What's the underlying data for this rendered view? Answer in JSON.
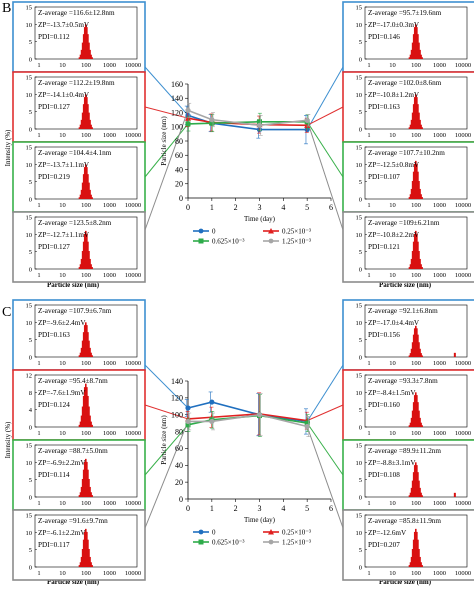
{
  "colors": {
    "series_0": "#1f6fbf",
    "series_025": "#e02020",
    "series_0625": "#2eab4a",
    "series_125": "#a6a6a6",
    "hist": "#d91010",
    "box_blue": "#3d8fd0",
    "box_red": "#e03030",
    "box_green": "#38b04a",
    "box_gray": "#8c8c8c"
  },
  "shared": {
    "x_ticks": [
      "1",
      "10",
      "100",
      "1000",
      "10000"
    ],
    "particle_size_label": "Particle size (nm)",
    "intensity_label": "Intensity (%)",
    "xlabel": "Time (day)",
    "ylabel": "Particle size (nm)",
    "legend": [
      "0",
      "0.25×10⁻³",
      "0.625×10⁻³",
      "1.25×10⁻³"
    ]
  },
  "chart_data": [
    {
      "panel": "B",
      "type": "line",
      "xlabel": "Time (day)",
      "ylabel": "Particle size (nm)",
      "xlim": [
        0,
        6
      ],
      "ylim": [
        0,
        160
      ],
      "x_ticks": [
        0,
        1,
        2,
        3,
        4,
        5,
        6
      ],
      "y_ticks": [
        0,
        20,
        40,
        60,
        80,
        100,
        120,
        140,
        160
      ],
      "x": [
        0,
        1,
        3,
        5
      ],
      "series": [
        {
          "name": "0",
          "color": "#1f6fbf",
          "values": [
            116,
            105,
            96,
            96
          ],
          "err": [
            13,
            12,
            12,
            20
          ]
        },
        {
          "name": "0.25×10⁻³",
          "color": "#e02020",
          "values": [
            112,
            106,
            103,
            102
          ],
          "err": [
            12,
            12,
            12,
            10
          ]
        },
        {
          "name": "0.625×10⁻³",
          "color": "#2eab4a",
          "values": [
            104,
            105,
            107,
            107
          ],
          "err": [
            10,
            12,
            12,
            10
          ]
        },
        {
          "name": "1.25×10⁻³",
          "color": "#a6a6a6",
          "values": [
            123,
            110,
            102,
            109
          ],
          "err": [
            10,
            10,
            14,
            8
          ]
        }
      ],
      "legend_position": "bottom"
    },
    {
      "panel": "C",
      "type": "line",
      "xlabel": "Time (day)",
      "ylabel": "Particle size (nm)",
      "xlim": [
        0,
        6
      ],
      "ylim": [
        0,
        140
      ],
      "x_ticks": [
        0,
        1,
        2,
        3,
        4,
        5,
        6
      ],
      "y_ticks": [
        0,
        20,
        40,
        60,
        80,
        100,
        120,
        140
      ],
      "x": [
        0,
        1,
        3,
        5
      ],
      "series": [
        {
          "name": "0",
          "color": "#1f6fbf",
          "values": [
            108,
            115,
            100,
            92
          ],
          "err": [
            10,
            12,
            25,
            15
          ]
        },
        {
          "name": "0.25×10⁻³",
          "color": "#e02020",
          "values": [
            95,
            97,
            101,
            93
          ],
          "err": [
            9,
            12,
            25,
            10
          ]
        },
        {
          "name": "0.625×10⁻³",
          "color": "#2eab4a",
          "values": [
            88,
            94,
            99,
            90
          ],
          "err": [
            8,
            10,
            25,
            10
          ]
        },
        {
          "name": "1.25×10⁻³",
          "color": "#a6a6a6",
          "values": [
            92,
            92,
            100,
            86
          ],
          "err": [
            10,
            10,
            25,
            12
          ]
        }
      ],
      "legend_position": "bottom"
    }
  ],
  "panels": [
    {
      "letter": "B",
      "boxes": [
        {
          "id": "B-L1",
          "lines": [
            "Z-average =116.6±12.8nm",
            "ZP=-13.7±0.5mV",
            "PDI=0.112"
          ],
          "y_ticks": [
            "15",
            "10",
            "5",
            "0"
          ],
          "ymax": 15,
          "hist_peak": 10,
          "extra_peak": false
        },
        {
          "id": "B-L2",
          "lines": [
            "Z-average =112.2±19.8nm",
            "ZP=-14.1±0.4mV",
            "PDI=0.127"
          ],
          "y_ticks": [
            "15",
            "10",
            "5",
            "0"
          ],
          "ymax": 15,
          "hist_peak": 10,
          "extra_peak": false
        },
        {
          "id": "B-L3",
          "lines": [
            "Z-average =104.4±4.1nm",
            "ZP=-13.7±1.1mV",
            "PDI=0.219"
          ],
          "y_ticks": [
            "15",
            "10",
            "5",
            "0"
          ],
          "ymax": 15,
          "hist_peak": 10,
          "extra_peak": false
        },
        {
          "id": "B-L4",
          "lines": [
            "Z-average =123.5±8.2nm",
            "ZP=-12.7±1.1mV",
            "PDI=0.127"
          ],
          "y_ticks": [
            "15",
            "10",
            "5",
            "0"
          ],
          "ymax": 15,
          "hist_peak": 11,
          "extra_peak": false
        },
        {
          "id": "B-R1",
          "lines": [
            "Z-average =95.7±19.6nm",
            "ZP=-17.0±0.3mV",
            "PDI=0.146"
          ],
          "y_ticks": [
            "15",
            "10",
            "5",
            "0"
          ],
          "ymax": 15,
          "hist_peak": 10,
          "extra_peak": false
        },
        {
          "id": "B-R2",
          "lines": [
            "Z-average =102.0±8.6nm",
            "ZP=-10.8±1.2mV",
            "PDI=0.163"
          ],
          "y_ticks": [
            "15",
            "10",
            "5",
            "0"
          ],
          "ymax": 15,
          "hist_peak": 10,
          "extra_peak": false
        },
        {
          "id": "B-R3",
          "lines": [
            "Z-average =107.7±10.2nm",
            "ZP=-12.5±0.8mV",
            "PDI=0.107"
          ],
          "y_ticks": [
            "15",
            "10",
            "5",
            "0"
          ],
          "ymax": 15,
          "hist_peak": 11,
          "extra_peak": false
        },
        {
          "id": "B-R4",
          "lines": [
            "Z-average =109±6.21nm",
            "ZP=-10.8±2.2mV",
            "PDI=0.121"
          ],
          "y_ticks": [
            "15",
            "10",
            "5",
            "0"
          ],
          "ymax": 15,
          "hist_peak": 11,
          "extra_peak": false
        }
      ]
    },
    {
      "letter": "C",
      "boxes": [
        {
          "id": "C-L1",
          "lines": [
            "Z-average =107.9±6.7nm",
            "ZP=-9.6±2.4mV",
            "PDI=0.163"
          ],
          "y_ticks": [
            "15",
            "10",
            "5",
            "0"
          ],
          "ymax": 15,
          "hist_peak": 10,
          "extra_peak": false
        },
        {
          "id": "C-L2",
          "lines": [
            "Z-average =95.4±8.7nm",
            "ZP=-7.6±1.9mV",
            "PDI=0.124"
          ],
          "y_ticks": [
            "12",
            "8",
            "4",
            "0"
          ],
          "ymax": 12,
          "hist_peak": 10,
          "extra_peak": false
        },
        {
          "id": "C-L3",
          "lines": [
            "Z-average =88.7±5.0nm",
            "ZP=-6.9±2.2mV",
            "PDI=0.114"
          ],
          "y_ticks": [
            "15",
            "10",
            "5",
            "0"
          ],
          "ymax": 15,
          "hist_peak": 11,
          "extra_peak": false
        },
        {
          "id": "C-L4",
          "lines": [
            "Z-average =91.6±9.7mn",
            "ZP=-6.1±2.2mV",
            "PDI=0.117"
          ],
          "y_ticks": [
            "15",
            "10",
            "5",
            "0"
          ],
          "ymax": 15,
          "hist_peak": 11,
          "extra_peak": false
        },
        {
          "id": "C-R1",
          "lines": [
            "Z-average =92.1±6.8nm",
            "ZP=-17.0±4.4mV",
            "PDI=0.156"
          ],
          "y_ticks": [
            "15",
            "10",
            "5",
            "0"
          ],
          "ymax": 15,
          "hist_peak": 9,
          "extra_peak": true
        },
        {
          "id": "C-R2",
          "lines": [
            "Z-average =93.3±7.8nm",
            "ZP=-8.4±1.5mV",
            "PDI=0.160"
          ],
          "y_ticks": [
            "15",
            "10",
            "5",
            "0"
          ],
          "ymax": 15,
          "hist_peak": 10,
          "extra_peak": false
        },
        {
          "id": "C-R3",
          "lines": [
            "Z-average =89.9±11.2nm",
            "ZP=-8.8±3.1mV",
            "PDI=0.108"
          ],
          "y_ticks": [
            "15",
            "10",
            "5",
            "0"
          ],
          "ymax": 15,
          "hist_peak": 10,
          "extra_peak": true
        },
        {
          "id": "C-R4",
          "lines": [
            "Z-average =85.8±11.9nm",
            "ZP=-12.6mV",
            "PDI=0.207"
          ],
          "y_ticks": [
            "15",
            "10",
            "5",
            "0"
          ],
          "ymax": 15,
          "hist_peak": 11,
          "extra_peak": false
        }
      ]
    }
  ]
}
